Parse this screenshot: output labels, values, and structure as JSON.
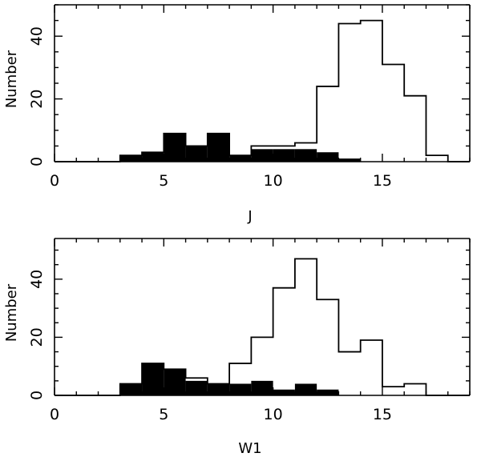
{
  "chart_data": [
    {
      "type": "bar",
      "xlabel": "J",
      "ylabel": "Number",
      "xlim": [
        0,
        19
      ],
      "ylim": [
        0,
        50
      ],
      "xticks": [
        0,
        5,
        10,
        15
      ],
      "yticks": [
        0,
        20,
        40
      ],
      "bin_width": 1,
      "bin_starts": [
        0,
        1,
        2,
        3,
        4,
        5,
        6,
        7,
        8,
        9,
        10,
        11,
        12,
        13,
        14,
        15,
        16,
        17,
        18
      ],
      "series": [
        {
          "style": "open-outline",
          "values": [
            0,
            0,
            0,
            2,
            3,
            9,
            5,
            9,
            2,
            5,
            5,
            6,
            24,
            44,
            45,
            31,
            21,
            2,
            0
          ]
        },
        {
          "style": "filled-black",
          "values": [
            0,
            0,
            0,
            2,
            3,
            9,
            5,
            9,
            2,
            4,
            4,
            4,
            3,
            1,
            0,
            0,
            0,
            0,
            0
          ]
        }
      ]
    },
    {
      "type": "bar",
      "xlabel": "W1",
      "ylabel": "Number",
      "xlim": [
        0,
        19
      ],
      "ylim": [
        0,
        54
      ],
      "xticks": [
        0,
        5,
        10,
        15
      ],
      "yticks": [
        0,
        20,
        40
      ],
      "bin_width": 1,
      "bin_starts": [
        0,
        1,
        2,
        3,
        4,
        5,
        6,
        7,
        8,
        9,
        10,
        11,
        12,
        13,
        14,
        15,
        16,
        17,
        18
      ],
      "series": [
        {
          "style": "open-outline",
          "values": [
            0,
            0,
            0,
            4,
            11,
            9,
            6,
            4,
            11,
            20,
            37,
            47,
            33,
            15,
            19,
            3,
            4,
            0,
            0
          ]
        },
        {
          "style": "filled-black",
          "values": [
            0,
            0,
            0,
            4,
            11,
            9,
            5,
            4,
            4,
            5,
            2,
            4,
            2,
            0,
            0,
            0,
            0,
            0,
            0
          ]
        }
      ]
    }
  ]
}
